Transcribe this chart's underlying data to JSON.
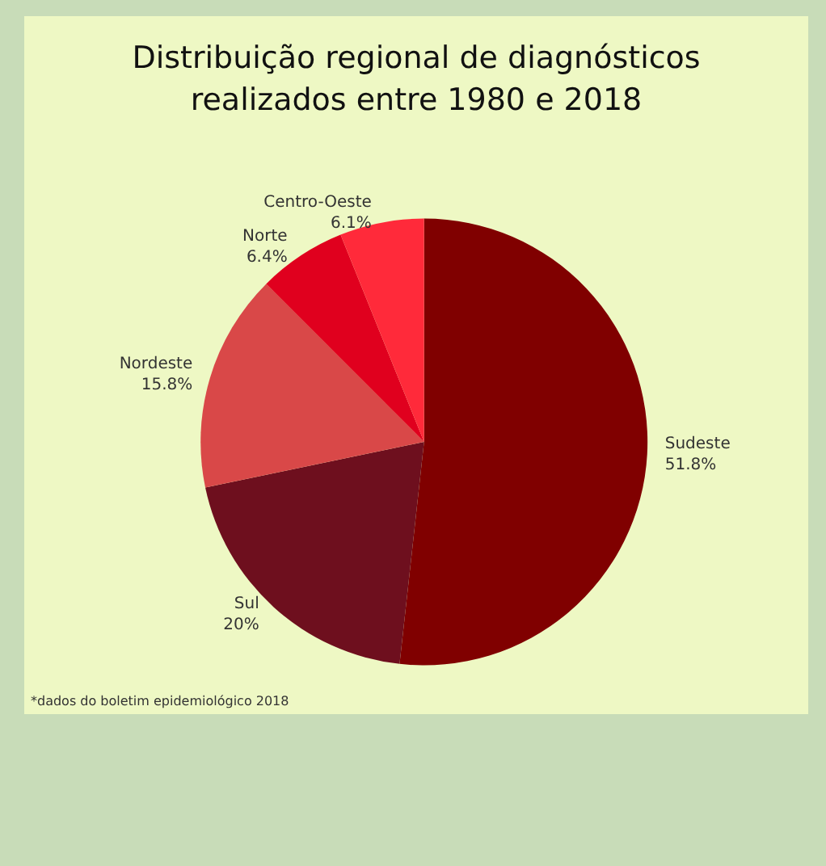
{
  "chart_data": {
    "type": "pie",
    "title": "Distribuição regional de diagnósticos\nrealizados entre 1980 e 2018",
    "categories": [
      "Sudeste",
      "Sul",
      "Nordeste",
      "Norte",
      "Centro-Oeste"
    ],
    "values": [
      51.8,
      20,
      15.8,
      6.4,
      6.1
    ],
    "value_labels": [
      "51.8%",
      "20%",
      "15.8%",
      "6.4%",
      "6.1%"
    ],
    "colors": [
      "#800000",
      "#6e0f1e",
      "#d94848",
      "#e0001e",
      "#ff2a3a"
    ],
    "annotations": [
      "*dados do boletim epidemiológico 2018"
    ]
  }
}
